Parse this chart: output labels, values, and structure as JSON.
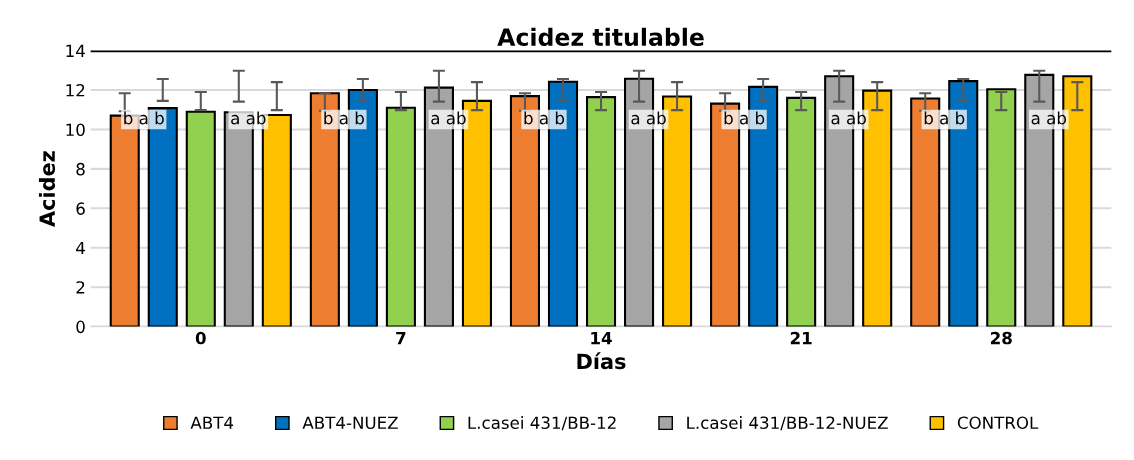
{
  "chart_data": {
    "type": "bar",
    "title": "Acidez titulable",
    "xlabel": "Días",
    "ylabel": "Acidez",
    "categories": [
      "0",
      "7",
      "14",
      "21",
      "28"
    ],
    "series": [
      {
        "name": "ABT4",
        "color": "#ed7d31",
        "values": [
          10.7,
          11.84,
          11.69,
          11.31,
          11.57
        ],
        "errors": [
          [
            10.92,
            11.84
          ],
          [
            10.95,
            11.84
          ],
          [
            10.95,
            11.84
          ],
          [
            10.95,
            11.84
          ],
          [
            10.95,
            11.84
          ]
        ]
      },
      {
        "name": "ABT4-NUEZ",
        "color": "#0070c0",
        "values": [
          11.08,
          12.0,
          12.42,
          12.16,
          12.45
        ],
        "errors": [
          [
            11.45,
            12.56
          ],
          [
            11.45,
            12.56
          ],
          [
            11.45,
            12.56
          ],
          [
            11.45,
            12.56
          ],
          [
            11.45,
            12.56
          ]
        ]
      },
      {
        "name": "L.casei 431/BB-12",
        "color": "#92d050",
        "values": [
          10.9,
          11.1,
          11.64,
          11.6,
          12.04
        ],
        "errors": [
          [
            10.98,
            11.9
          ],
          [
            10.98,
            11.9
          ],
          [
            10.98,
            11.9
          ],
          [
            10.98,
            11.9
          ],
          [
            10.98,
            11.9
          ]
        ]
      },
      {
        "name": "L.casei 431/BB-12-NUEZ",
        "color": "#a5a5a5",
        "values": [
          10.87,
          12.12,
          12.57,
          12.7,
          12.77
        ],
        "errors": [
          [
            11.41,
            12.98
          ],
          [
            11.41,
            12.98
          ],
          [
            11.41,
            12.98
          ],
          [
            11.41,
            12.98
          ],
          [
            11.41,
            12.98
          ]
        ]
      },
      {
        "name": "CONTROL",
        "color": "#ffc000",
        "values": [
          10.73,
          11.45,
          11.67,
          11.97,
          12.7
        ],
        "errors": [
          [
            10.98,
            12.4
          ],
          [
            10.98,
            12.4
          ],
          [
            10.98,
            12.4
          ],
          [
            10.98,
            12.4
          ],
          [
            10.98,
            12.4
          ]
        ]
      }
    ],
    "annotations": [
      "b a b",
      "a ab",
      "b a b",
      "a ab",
      "b a b",
      "a ab",
      "b a b",
      "a ab",
      "b a b",
      "a ab"
    ],
    "ref_lines": [
      {
        "axis": "y",
        "value": 14,
        "color": "#000000"
      }
    ],
    "ylim": [
      0,
      14
    ],
    "yticks": [
      0,
      2,
      4,
      6,
      8,
      10,
      12,
      14
    ],
    "grid": "y",
    "legend": "bottom"
  }
}
